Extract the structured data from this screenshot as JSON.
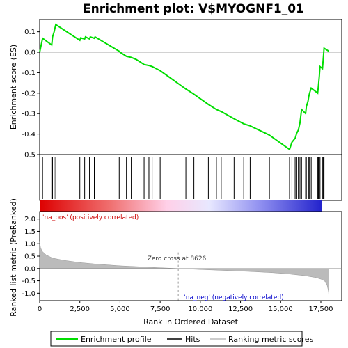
{
  "chart_data": {
    "type": "line",
    "title": "Enrichment plot: V$MYOGNF1_01",
    "xlabel": "Rank in Ordered Dataset",
    "ylabel_top": "Enrichment score (ES)",
    "ylabel_bottom": "Ranked list metric (PreRanked)",
    "x_range": [
      0,
      18800
    ],
    "x_ticks": [
      0,
      2500,
      5000,
      7500,
      10000,
      12500,
      15000,
      17500
    ],
    "es_ylim": [
      -0.5,
      0.16
    ],
    "es_ticks": [
      0.1,
      0.0,
      -0.1,
      -0.2,
      -0.3,
      -0.4,
      -0.5
    ],
    "metric_ylim": [
      -1.3,
      2.3
    ],
    "metric_ticks": [
      2.0,
      1.5,
      1.0,
      0.5,
      0.0,
      -0.5,
      -1.0
    ],
    "es_profile": {
      "name": "Enrichment profile",
      "color": "#00dd00",
      "points": [
        [
          0,
          0.0
        ],
        [
          180,
          0.068
        ],
        [
          750,
          0.035
        ],
        [
          800,
          0.075
        ],
        [
          900,
          0.1
        ],
        [
          1000,
          0.135
        ],
        [
          2500,
          0.058
        ],
        [
          2550,
          0.07
        ],
        [
          2800,
          0.065
        ],
        [
          2850,
          0.075
        ],
        [
          3100,
          0.065
        ],
        [
          3150,
          0.075
        ],
        [
          3400,
          0.068
        ],
        [
          3450,
          0.075
        ],
        [
          4950,
          0.005
        ],
        [
          5000,
          0.0
        ],
        [
          5400,
          -0.02
        ],
        [
          5700,
          -0.025
        ],
        [
          6000,
          -0.035
        ],
        [
          6500,
          -0.06
        ],
        [
          6800,
          -0.065
        ],
        [
          7000,
          -0.07
        ],
        [
          7500,
          -0.09
        ],
        [
          9100,
          -0.18
        ],
        [
          9600,
          -0.205
        ],
        [
          10500,
          -0.255
        ],
        [
          11000,
          -0.28
        ],
        [
          11300,
          -0.29
        ],
        [
          12100,
          -0.325
        ],
        [
          12700,
          -0.35
        ],
        [
          13100,
          -0.36
        ],
        [
          14300,
          -0.405
        ],
        [
          15550,
          -0.475
        ],
        [
          15700,
          -0.44
        ],
        [
          15900,
          -0.42
        ],
        [
          16000,
          -0.395
        ],
        [
          16100,
          -0.38
        ],
        [
          16200,
          -0.345
        ],
        [
          16300,
          -0.28
        ],
        [
          16550,
          -0.3
        ],
        [
          16600,
          -0.265
        ],
        [
          16700,
          -0.24
        ],
        [
          16750,
          -0.215
        ],
        [
          16800,
          -0.2
        ],
        [
          16900,
          -0.175
        ],
        [
          17300,
          -0.2
        ],
        [
          17350,
          -0.165
        ],
        [
          17400,
          -0.12
        ],
        [
          17450,
          -0.07
        ],
        [
          17600,
          -0.08
        ],
        [
          17650,
          -0.03
        ],
        [
          17700,
          0.02
        ],
        [
          18000,
          0.005
        ]
      ]
    },
    "hits": {
      "name": "Hits",
      "ranks": [
        180,
        750,
        800,
        900,
        1000,
        2500,
        2800,
        3100,
        3400,
        4950,
        5400,
        5700,
        6000,
        6500,
        6800,
        7000,
        7500,
        9100,
        9600,
        10500,
        11000,
        11300,
        12100,
        12700,
        13100,
        14300,
        15550,
        15700,
        15900,
        16000,
        16100,
        16200,
        16300,
        16550,
        16600,
        16700,
        16750,
        16800,
        16900,
        17300,
        17350,
        17400,
        17450,
        17600,
        17650,
        17700
      ]
    },
    "ranking_metric": {
      "name": "Ranking metric scores",
      "points": [
        [
          0,
          1.1
        ],
        [
          50,
          0.85
        ],
        [
          150,
          0.7
        ],
        [
          400,
          0.55
        ],
        [
          800,
          0.42
        ],
        [
          1500,
          0.33
        ],
        [
          2500,
          0.24
        ],
        [
          3500,
          0.18
        ],
        [
          5000,
          0.11
        ],
        [
          6500,
          0.06
        ],
        [
          7500,
          0.03
        ],
        [
          8626,
          0.0
        ],
        [
          10000,
          -0.04
        ],
        [
          11500,
          -0.08
        ],
        [
          13000,
          -0.12
        ],
        [
          14500,
          -0.17
        ],
        [
          15500,
          -0.22
        ],
        [
          16500,
          -0.29
        ],
        [
          17200,
          -0.37
        ],
        [
          17600,
          -0.45
        ],
        [
          17800,
          -0.55
        ],
        [
          17900,
          -0.7
        ],
        [
          17980,
          -0.95
        ],
        [
          18000,
          -1.25
        ]
      ]
    },
    "zero_cross_rank": 8626,
    "zero_cross_label": "Zero cross at 8626",
    "pos_label": "'na_pos' (positively correlated)",
    "neg_label": "'na_neg' (negatively correlated)",
    "pos_color": "#cc0000",
    "neg_color": "#0000cc",
    "legend_items": [
      "Enrichment profile",
      "Hits",
      "Ranking metric scores"
    ]
  }
}
